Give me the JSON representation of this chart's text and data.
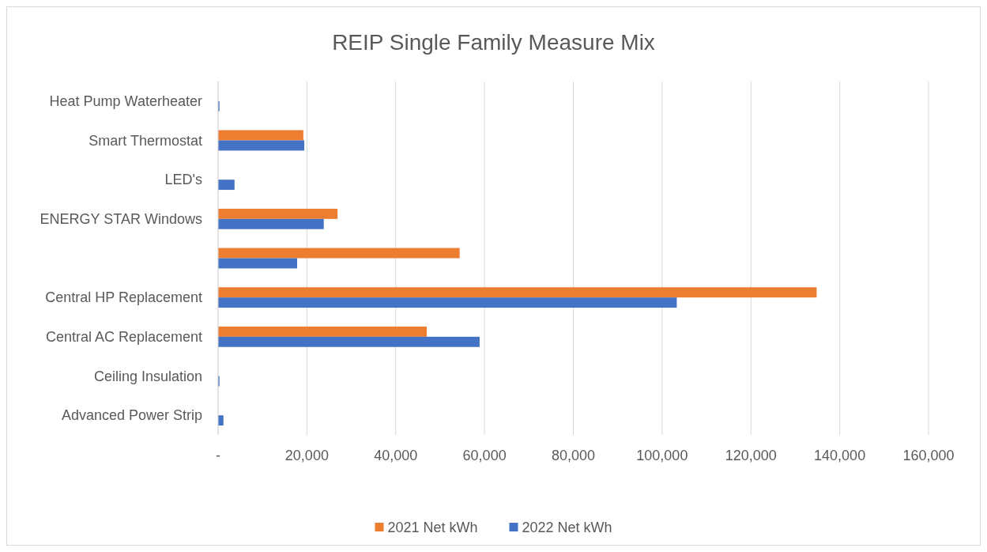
{
  "chart_data": {
    "type": "bar",
    "orientation": "horizontal",
    "title": "REIP Single Family Measure Mix",
    "categories": [
      "Heat Pump Waterheater",
      "Smart Thermostat",
      "LED's",
      "ENERGY STAR Windows",
      null,
      "Central HP Replacement",
      "Central AC Replacement",
      "Ceiling Insulation",
      "Advanced Power Strip"
    ],
    "series": [
      {
        "name": "2021 Net kWh",
        "color": "#ed7d31",
        "values": [
          null,
          19200,
          null,
          26900,
          54400,
          134800,
          47000,
          null,
          null
        ]
      },
      {
        "name": "2022 Net kWh",
        "color": "#4472c4",
        "values": [
          300,
          19400,
          3700,
          23800,
          17800,
          103300,
          58900,
          300,
          1200
        ]
      }
    ],
    "xlim": [
      0,
      160000
    ],
    "xticks": [
      {
        "value": 0,
        "label": "-"
      },
      {
        "value": 20000,
        "label": "20,000"
      },
      {
        "value": 40000,
        "label": "40,000"
      },
      {
        "value": 60000,
        "label": "60,000"
      },
      {
        "value": 80000,
        "label": "80,000"
      },
      {
        "value": 100000,
        "label": "100,000"
      },
      {
        "value": 120000,
        "label": "120,000"
      },
      {
        "value": 140000,
        "label": "140,000"
      },
      {
        "value": 160000,
        "label": "160,000"
      }
    ],
    "grid": "x",
    "legend": "bottom"
  }
}
